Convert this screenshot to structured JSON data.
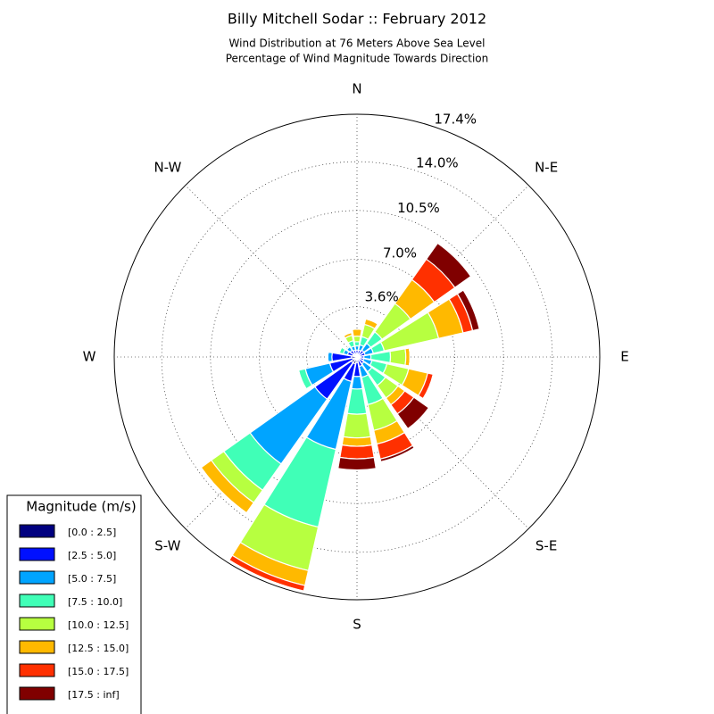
{
  "chart_data": {
    "type": "windrose",
    "title": "Billy Mitchell Sodar :: February 2012",
    "subtitle": [
      "Wind Distribution at 76 Meters Above Sea Level",
      "Percentage of Wind Magnitude Towards Direction"
    ],
    "categories": [
      "N",
      null,
      "N-E",
      null,
      "E",
      null,
      "S-E",
      null,
      "S",
      null,
      "S-W",
      null,
      "W",
      null,
      "N-W",
      null
    ],
    "rlim": [
      0,
      17.4
    ],
    "rticks": [
      {
        "value": 3.6,
        "label": "3.6%"
      },
      {
        "value": 7.0,
        "label": "7.0%"
      },
      {
        "value": 10.5,
        "label": "10.5%"
      },
      {
        "value": 14.0,
        "label": "14.0%"
      },
      {
        "value": 17.4,
        "label": "17.4%"
      }
    ],
    "grid": true,
    "legend_title": "Magnitude (m/s)",
    "legend_position": "lower left",
    "series": [
      {
        "name": "[0.0 : 2.5]",
        "color": "#000080",
        "values": [
          0.2,
          0.2,
          0.2,
          0.2,
          0.2,
          0.2,
          0.2,
          0.2,
          0.4,
          0.5,
          0.5,
          0.3,
          0.4,
          0.3,
          0.3,
          0.2
        ]
      },
      {
        "name": "[2.5 : 5.0]",
        "color": "#0010ff",
        "values": [
          0.3,
          0.3,
          0.4,
          0.4,
          0.3,
          0.3,
          0.4,
          0.5,
          1.0,
          1.3,
          3.2,
          1.7,
          1.4,
          0.4,
          0.3,
          0.3
        ]
      },
      {
        "name": "[5.0 : 7.5]",
        "color": "#00a4ff",
        "values": [
          0.3,
          0.4,
          0.6,
          0.6,
          0.5,
          0.6,
          0.7,
          0.8,
          0.9,
          5.0,
          5.7,
          1.8,
          0.3,
          0.3,
          0.3,
          0.3
        ]
      },
      {
        "name": "[7.5 : 10.0]",
        "color": "#40ffb7",
        "values": [
          0.3,
          0.6,
          1.0,
          0.8,
          1.4,
          1.1,
          1.2,
          2.0,
          1.8,
          5.7,
          2.3,
          0.5,
          0,
          0.3,
          0.1,
          0.4
        ]
      },
      {
        "name": "[10.0 : 12.5]",
        "color": "#b7ff40",
        "values": [
          0.4,
          0.9,
          2.5,
          4.0,
          1.1,
          1.6,
          1.1,
          1.9,
          1.7,
          3.2,
          1.1,
          0,
          0,
          0,
          0,
          0.4
        ]
      },
      {
        "name": "[12.5 : 15.0]",
        "color": "#ffb900",
        "values": [
          0.5,
          0.4,
          2.1,
          1.8,
          0.3,
          1.4,
          0.6,
          1.0,
          0.6,
          1.1,
          0.9,
          0,
          0,
          0,
          0,
          0.2
        ]
      },
      {
        "name": "[15.0 : 17.5]",
        "color": "#ff3000",
        "values": [
          0,
          0,
          1.8,
          0.7,
          0,
          0.4,
          0.8,
          1.1,
          0.9,
          0.4,
          0,
          0,
          0,
          0,
          0,
          0
        ]
      },
      {
        "name": "[17.5 : inf]",
        "color": "#800000",
        "values": [
          0,
          0,
          1.4,
          0.5,
          0,
          0,
          1.3,
          0.2,
          0.8,
          0,
          0,
          0,
          0,
          0,
          0,
          0
        ]
      }
    ]
  }
}
